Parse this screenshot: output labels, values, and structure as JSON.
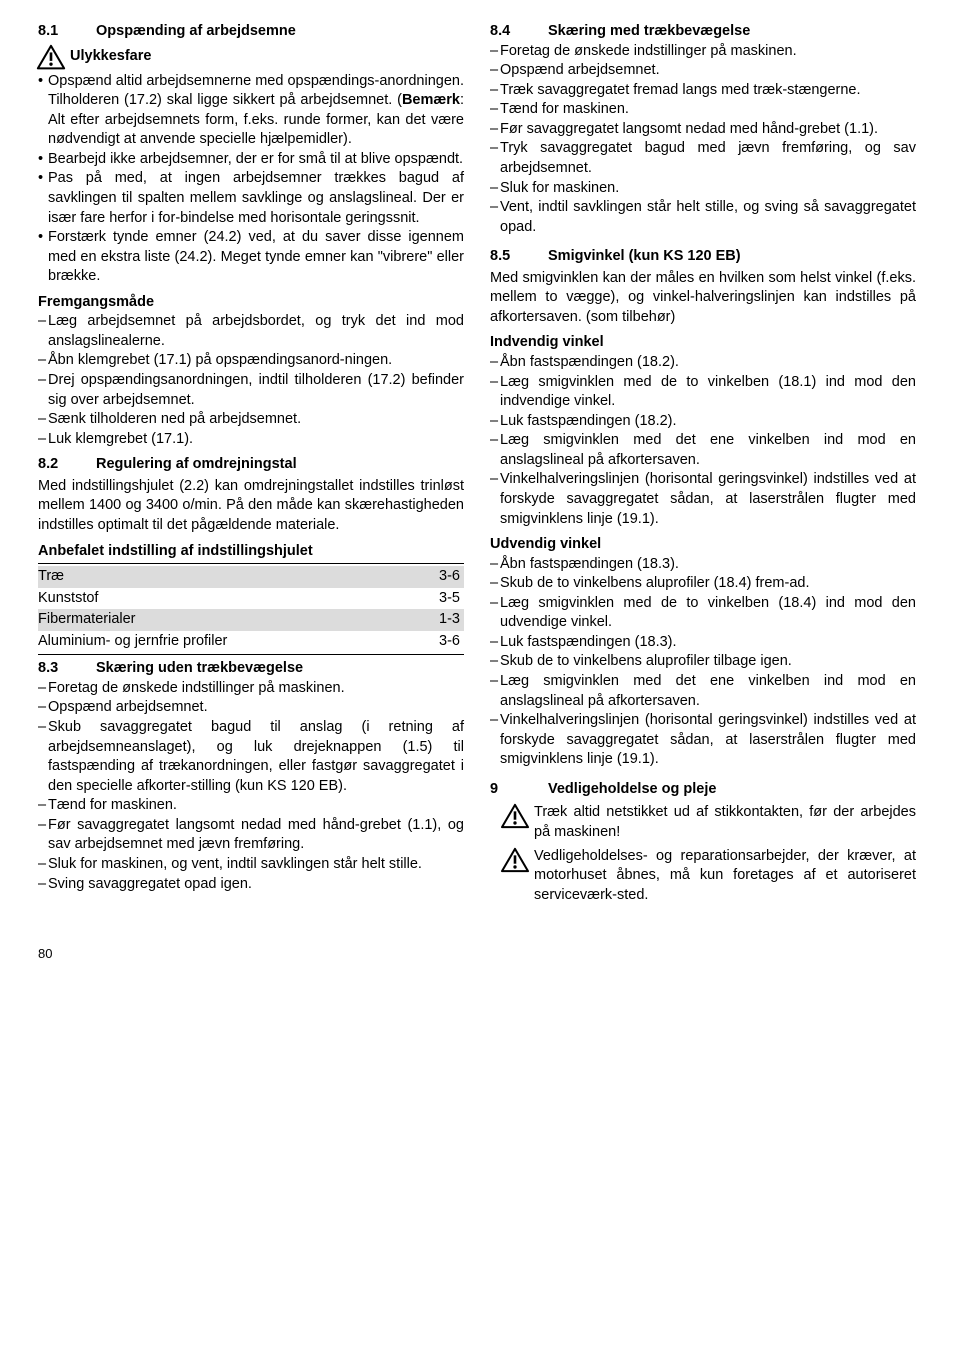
{
  "left": {
    "s81": {
      "num": "8.1",
      "title": "Opspænding af arbejdsemne"
    },
    "ulykkesfare": "Ulykkesfare",
    "s81_bullets": [
      "Opspænd altid arbejdsemnerne med opspændings-anordningen. Tilholderen (17.2) skal ligge sikkert på arbejdsemnet. (<b>Bemærk</b>: Alt efter arbejdsemnets form, f.eks. runde former, kan det være nødvendigt at anvende specielle hjælpemidler).",
      "Bearbejd ikke arbejdsemner, der er for små til at blive opspændt.",
      "Pas på med, at ingen arbejdsemner trækkes bagud af savklingen til spalten mellem savklinge og anslagslineal. Der er især fare herfor i for-bindelse med horisontale geringssnit.",
      "Forstærk tynde emner (24.2) ved, at du saver disse igennem med en ekstra liste (24.2). Meget tynde emner kan \"vibrere\" eller brække."
    ],
    "fremg_title": "Fremgangsmåde",
    "fremg_items": [
      "Læg arbejdsemnet på arbejdsbordet, og tryk det ind mod anslagslinealerne.",
      "Åbn klemgrebet (17.1) på opspændingsanord-ningen.",
      "Drej opspændingsanordningen, indtil tilholderen (17.2) befinder sig over arbejdsemnet.",
      "Sænk tilholderen ned på arbejdsemnet.",
      "Luk klemgrebet (17.1)."
    ],
    "s82": {
      "num": "8.2",
      "title": "Regulering af omdrejningstal"
    },
    "s82_para": "Med indstillingshjulet (2.2) kan omdrejningstallet indstilles trinløst mellem 1400 og 3400 o/min. På den måde kan skærehastigheden indstilles optimalt til det pågældende materiale.",
    "anbf_title": "Anbefalet indstilling af indstillingshjulet",
    "table": [
      [
        "Træ",
        "3-6"
      ],
      [
        "Kunststof",
        "3-5"
      ],
      [
        "Fibermaterialer",
        "1-3"
      ],
      [
        "Aluminium- og jernfrie profiler",
        "3-6"
      ]
    ],
    "s83": {
      "num": "8.3",
      "title": "Skæring uden trækbevægelse"
    },
    "s83_items": [
      "Foretag de ønskede indstillinger på maskinen.",
      "Opspænd arbejdsemnet.",
      "Skub savaggregatet bagud til anslag (i retning af arbejdsemneanslaget), og luk drejeknappen (1.5) til fastspænding af trækanordningen, eller fastgør savaggregatet i den specielle afkorter-stilling (kun KS 120 EB).",
      "Tænd for maskinen.",
      "Før savaggregatet langsomt nedad med hånd-grebet (1.1), og sav arbejdsemnet med jævn fremføring.",
      "Sluk for maskinen, og vent, indtil savklingen står helt stille.",
      "Sving savaggregatet opad igen."
    ]
  },
  "right": {
    "s84": {
      "num": "8.4",
      "title": "Skæring med trækbevægelse"
    },
    "s84_items": [
      "Foretag de ønskede indstillinger på maskinen.",
      "Opspænd arbejdsemnet.",
      "Træk savaggregatet fremad langs med træk-stængerne.",
      "Tænd for maskinen.",
      "Før savaggregatet langsomt nedad med hånd-grebet (1.1).",
      "Tryk savaggregatet bagud med jævn fremføring, og sav arbejdsemnet.",
      "Sluk for maskinen.",
      "Vent, indtil savklingen står helt stille, og sving så savaggregatet opad."
    ],
    "s85": {
      "num": "8.5",
      "title": "Smigvinkel (kun KS 120 EB)"
    },
    "s85_para": "Med smigvinklen kan der måles en hvilken som helst vinkel (f.eks. mellem to vægge), og vinkel-halveringslinjen kan indstilles på afkortersaven. (som tilbehør)",
    "indv_title": "Indvendig vinkel",
    "indv_items": [
      "Åbn fastspændingen (18.2).",
      "Læg smigvinklen med de to vinkelben (18.1) ind mod den indvendige vinkel.",
      "Luk fastspændingen (18.2).",
      "Læg smigvinklen med det ene vinkelben ind mod en anslagslineal på afkortersaven.",
      "Vinkelhalveringslinjen (horisontal geringsvinkel) indstilles ved at forskyde savaggregatet sådan, at laserstrålen flugter med smigvinklens linje (19.1)."
    ],
    "udv_title": "Udvendig vinkel",
    "udv_items": [
      "Åbn fastspændingen (18.3).",
      "Skub de to vinkelbens aluprofiler (18.4) frem-ad.",
      "Læg smigvinklen med de to vinkelben (18.4) ind mod den udvendige vinkel.",
      "Luk fastspændingen (18.3).",
      "Skub de to vinkelbens aluprofiler tilbage igen.",
      "Læg smigvinklen med det ene vinkelben ind mod en anslagslineal på afkortersaven.",
      "Vinkelhalveringslinjen (horisontal geringsvinkel) indstilles ved at forskyde savaggregatet sådan, at laserstrålen flugter med smigvinklens linje (19.1)."
    ],
    "s9": {
      "num": "9",
      "title": "Vedligeholdelse og pleje"
    },
    "s9_p1": "Træk altid netstikket ud af stikkontakten, før der arbejdes på maskinen!",
    "s9_p2": "Vedligeholdelses- og reparationsarbejder, der kræver, at motorhuset åbnes, må kun foretages af et autoriseret serviceværk-sted."
  },
  "pagenum": "80"
}
